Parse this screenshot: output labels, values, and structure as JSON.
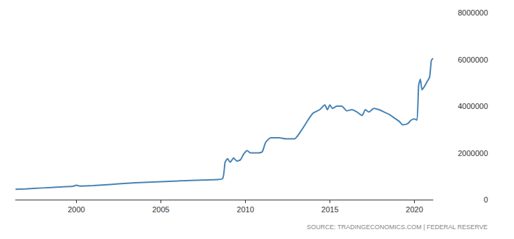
{
  "chart_data": {
    "type": "line",
    "source": "SOURCE: TRADINGECONOMICS.COM | FEDERAL RESERVE",
    "color": "#4682b4",
    "grid": false,
    "x": [
      1996.4,
      1997.0,
      1998.0,
      1999.0,
      1999.8,
      2000.0,
      2000.2,
      2001.0,
      2002.0,
      2003.0,
      2004.0,
      2005.0,
      2006.0,
      2007.0,
      2008.0,
      2008.65,
      2008.8,
      2008.95,
      2009.1,
      2009.3,
      2009.5,
      2009.7,
      2009.9,
      2010.1,
      2010.3,
      2010.8,
      2011.0,
      2011.2,
      2011.5,
      2012.0,
      2012.4,
      2012.9,
      2013.3,
      2013.7,
      2014.0,
      2014.4,
      2014.7,
      2014.85,
      2015.0,
      2015.15,
      2015.4,
      2015.7,
      2016.0,
      2016.3,
      2016.6,
      2016.9,
      2017.1,
      2017.3,
      2017.6,
      2017.9,
      2018.2,
      2018.5,
      2018.8,
      2019.1,
      2019.3,
      2019.6,
      2019.8,
      2020.0,
      2020.15,
      2020.25,
      2020.35,
      2020.45,
      2020.6,
      2020.75,
      2020.9,
      2021.0,
      2021.1
    ],
    "values": [
      440000,
      460000,
      500000,
      540000,
      570000,
      620000,
      580000,
      600000,
      650000,
      700000,
      740000,
      770000,
      800000,
      830000,
      850000,
      900000,
      1600000,
      1750000,
      1600000,
      1780000,
      1650000,
      1700000,
      1950000,
      2100000,
      2000000,
      2000000,
      2050000,
      2450000,
      2650000,
      2650000,
      2600000,
      2600000,
      2950000,
      3400000,
      3700000,
      3850000,
      4050000,
      3850000,
      4050000,
      3900000,
      4000000,
      4000000,
      3800000,
      3850000,
      3750000,
      3600000,
      3850000,
      3750000,
      3900000,
      3850000,
      3750000,
      3650000,
      3500000,
      3350000,
      3200000,
      3250000,
      3400000,
      3450000,
      3400000,
      4900000,
      5150000,
      4700000,
      4850000,
      5050000,
      5250000,
      5950000,
      6050000
    ],
    "xlim": [
      1996.4,
      2021.1
    ],
    "xticks": [
      2000,
      2005,
      2010,
      2015,
      2020
    ],
    "ylim": [
      0,
      8000000
    ],
    "yticks": [
      0,
      2000000,
      4000000,
      6000000,
      8000000
    ]
  }
}
